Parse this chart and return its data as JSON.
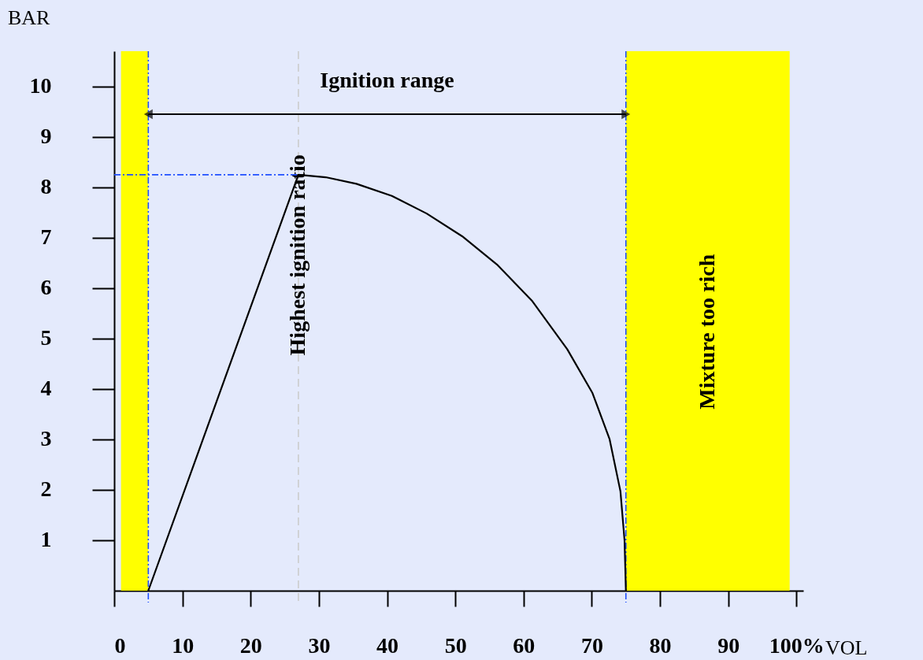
{
  "chart_data": {
    "type": "line",
    "xlabel": "VOL",
    "ylabel": "BAR",
    "x": [
      5,
      27,
      31,
      35.5,
      40.7,
      45.8,
      51,
      56.1,
      61.3,
      66.4,
      70.1,
      72.6,
      74.2,
      74.8,
      75
    ],
    "series": [
      {
        "color": "#000000",
        "values": [
          0,
          8.25,
          8.2,
          8.07,
          7.83,
          7.48,
          7.03,
          6.47,
          5.74,
          4.79,
          3.92,
          3.01,
          1.97,
          1,
          0
        ]
      }
    ],
    "xlim": [
      0,
      101
    ],
    "ylim": [
      0,
      10.7
    ],
    "xticks": [
      0,
      10,
      20,
      30,
      40,
      50,
      60,
      70,
      80,
      90,
      {
        "value": 100,
        "label": "100%"
      }
    ],
    "yticks": [
      1,
      2,
      3,
      4,
      5,
      6,
      7,
      8,
      9,
      10
    ],
    "ref_lines": [
      {
        "axis": "x",
        "value": 5,
        "color": "#1f4fff",
        "line_style": "dashdot"
      },
      {
        "axis": "x",
        "value": 75,
        "color": "#1f4fff",
        "line_style": "dashdot"
      },
      {
        "axis": "x",
        "value": 27,
        "color": "#cccccc",
        "line_style": "dashed",
        "label": "Highest ignition ratio"
      },
      {
        "axis": "y",
        "value": 8.25,
        "color": "#1f4fff",
        "line_style": "dashdot"
      }
    ],
    "bands": [
      {
        "axis": "x",
        "from": 1,
        "to": 5,
        "color": "#ffff00"
      },
      {
        "axis": "x",
        "from": 75,
        "to": 99,
        "color": "#ffff00",
        "label": "Mixture too rich"
      }
    ],
    "annotations": [
      "Ignition range"
    ],
    "grid": false,
    "marker": "none",
    "line_style": "solid"
  }
}
